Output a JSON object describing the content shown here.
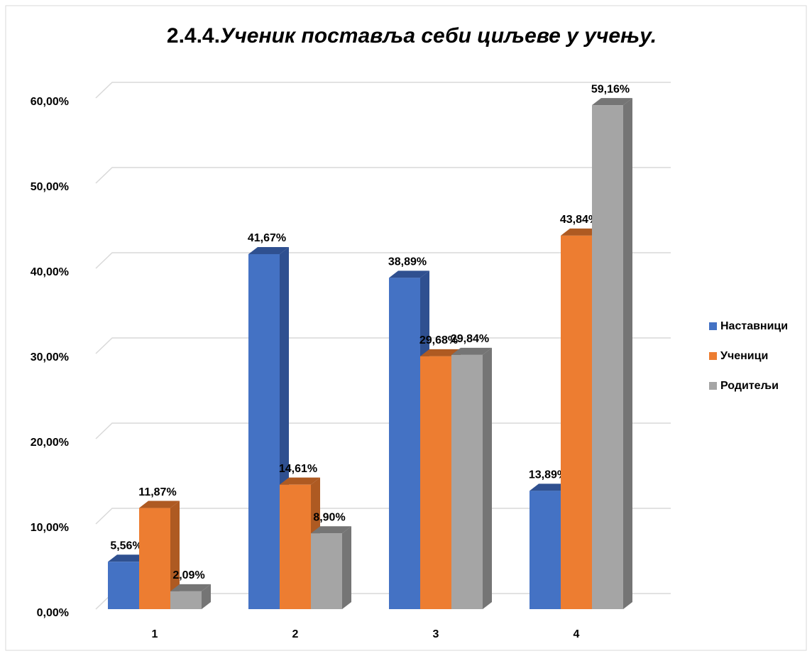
{
  "chart_data": {
    "type": "bar3d",
    "title_number": "2.4.4.",
    "title": "Ученик поставља себи циљеве у учењу.",
    "categories": [
      "1",
      "2",
      "3",
      "4"
    ],
    "series": [
      {
        "name": "Наставници",
        "color": "#4472c4",
        "side": "#2f5090",
        "values": [
          5.56,
          41.67,
          38.89,
          13.89
        ],
        "value_labels": [
          "5,56%",
          "41,67%",
          "38,89%",
          "13,89%"
        ]
      },
      {
        "name": "Ученици",
        "color": "#ed7d31",
        "side": "#ae5a22",
        "values": [
          11.87,
          14.61,
          29.68,
          43.84
        ],
        "value_labels": [
          "11,87%",
          "14,61%",
          "29,68%",
          "43,84%"
        ]
      },
      {
        "name": "Родитељи",
        "color": "#a5a5a5",
        "side": "#757575",
        "values": [
          2.09,
          8.9,
          29.84,
          59.16
        ],
        "value_labels": [
          "2,09%",
          "8,90%",
          "29,84%",
          "59,16%"
        ]
      }
    ],
    "ylim": [
      0,
      60
    ],
    "yticks": [
      {
        "value": 0,
        "label": "0,00%"
      },
      {
        "value": 10,
        "label": "10,00%"
      },
      {
        "value": 20,
        "label": "20,00%"
      },
      {
        "value": 30,
        "label": "30,00%"
      },
      {
        "value": 40,
        "label": "40,00%"
      },
      {
        "value": 50,
        "label": "50,00%"
      },
      {
        "value": 60,
        "label": "60,00%"
      }
    ],
    "grid": true,
    "legend": "right"
  }
}
